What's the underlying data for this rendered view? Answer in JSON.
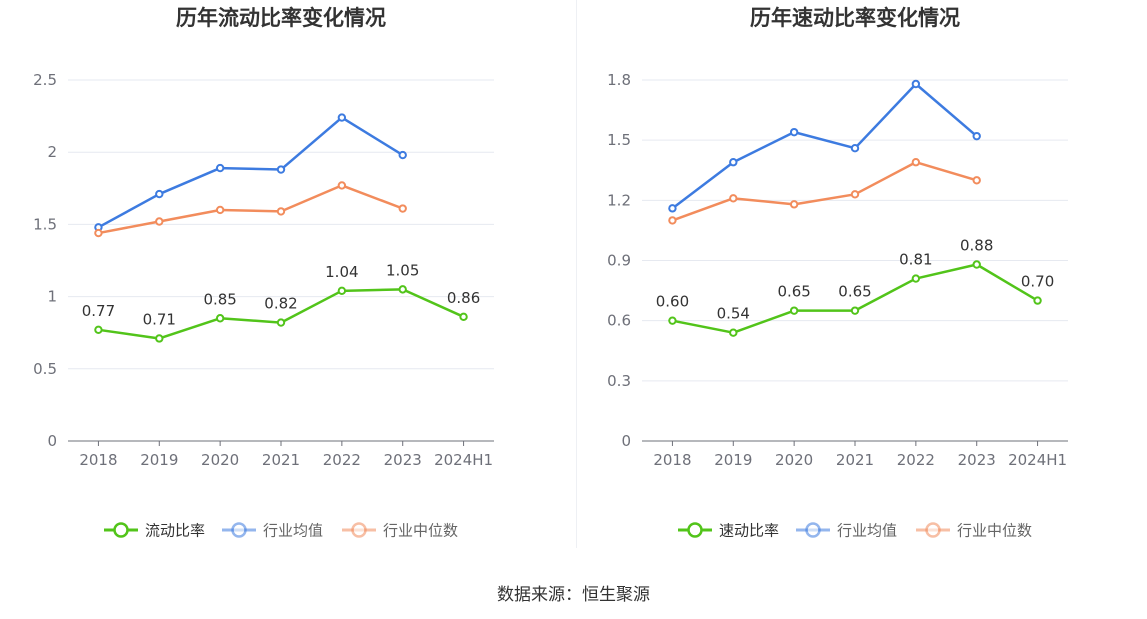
{
  "source_text": "数据来源：恒生聚源",
  "chart_data": [
    {
      "type": "line",
      "title": "历年流动比率变化情况",
      "categories": [
        "2018",
        "2019",
        "2020",
        "2021",
        "2022",
        "2023",
        "2024H1"
      ],
      "ylim": [
        0,
        2.5
      ],
      "yticks": [
        0,
        0.5,
        1,
        1.5,
        2,
        2.5
      ],
      "ytick_labels": [
        "0",
        "0.5",
        "1",
        "1.5",
        "2",
        "2.5"
      ],
      "grid": true,
      "legend_position": "bottom",
      "series": [
        {
          "name": "流动比率",
          "color": "#52c41a",
          "values": [
            0.77,
            0.71,
            0.85,
            0.82,
            1.04,
            1.05,
            0.86
          ],
          "labels": [
            "0.77",
            "0.71",
            "0.85",
            "0.82",
            "1.04",
            "1.05",
            "0.86"
          ]
        },
        {
          "name": "行业均值",
          "color": "#3d7be0",
          "values": [
            1.48,
            1.71,
            1.89,
            1.88,
            2.24,
            1.98,
            null
          ]
        },
        {
          "name": "行业中位数",
          "color": "#f28c5c",
          "values": [
            1.44,
            1.52,
            1.6,
            1.59,
            1.77,
            1.61,
            null
          ]
        }
      ]
    },
    {
      "type": "line",
      "title": "历年速动比率变化情况",
      "categories": [
        "2018",
        "2019",
        "2020",
        "2021",
        "2022",
        "2023",
        "2024H1"
      ],
      "ylim": [
        0,
        1.8
      ],
      "yticks": [
        0,
        0.3,
        0.6,
        0.9,
        1.2,
        1.5,
        1.8
      ],
      "ytick_labels": [
        "0",
        "0.3",
        "0.6",
        "0.9",
        "1.2",
        "1.5",
        "1.8"
      ],
      "grid": true,
      "legend_position": "bottom",
      "series": [
        {
          "name": "速动比率",
          "color": "#52c41a",
          "values": [
            0.6,
            0.54,
            0.65,
            0.65,
            0.81,
            0.88,
            0.7
          ],
          "labels": [
            "0.60",
            "0.54",
            "0.65",
            "0.65",
            "0.81",
            "0.88",
            "0.70"
          ]
        },
        {
          "name": "行业均值",
          "color": "#3d7be0",
          "values": [
            1.16,
            1.39,
            1.54,
            1.46,
            1.78,
            1.52,
            null
          ]
        },
        {
          "name": "行业中位数",
          "color": "#f28c5c",
          "values": [
            1.1,
            1.21,
            1.18,
            1.23,
            1.39,
            1.3,
            null
          ]
        }
      ]
    }
  ]
}
